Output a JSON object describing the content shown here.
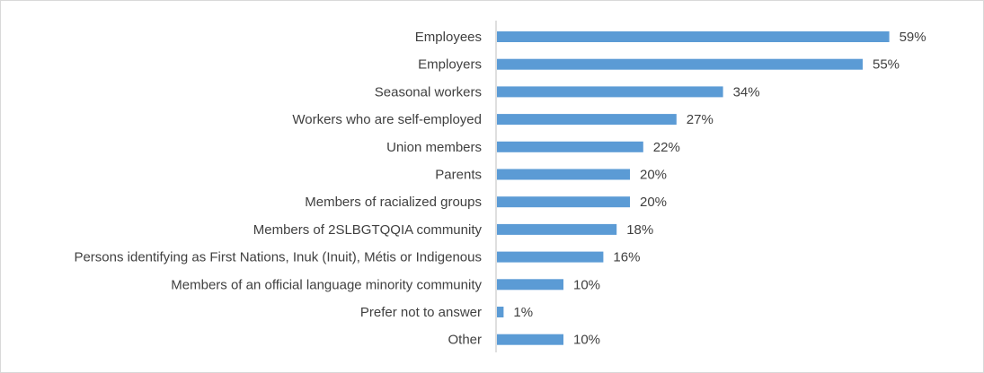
{
  "chart_data": {
    "type": "bar",
    "orientation": "horizontal",
    "title": "",
    "xlabel": "",
    "ylabel": "",
    "categories": [
      "Employees",
      "Employers",
      "Seasonal workers",
      "Workers who are self-employed",
      "Union members",
      "Parents",
      "Members of racialized groups",
      "Members of 2SLBGTQQIA community",
      "Persons identifying as First Nations, Inuk (Inuit), Métis or Indigenous",
      "Members of an official language minority community",
      "Prefer not to answer",
      "Other"
    ],
    "values": [
      59,
      55,
      34,
      27,
      22,
      20,
      20,
      18,
      16,
      10,
      1,
      10
    ],
    "value_labels": [
      "59%",
      "55%",
      "34%",
      "27%",
      "22%",
      "20%",
      "20%",
      "18%",
      "16%",
      "10%",
      "1%",
      "10%"
    ],
    "xlim": [
      0,
      100
    ],
    "unit": "%",
    "grid": false,
    "legend": "none",
    "bar_color": "#5b9bd5",
    "axis_color": "#bfbfbf",
    "text_color": "#404040"
  }
}
